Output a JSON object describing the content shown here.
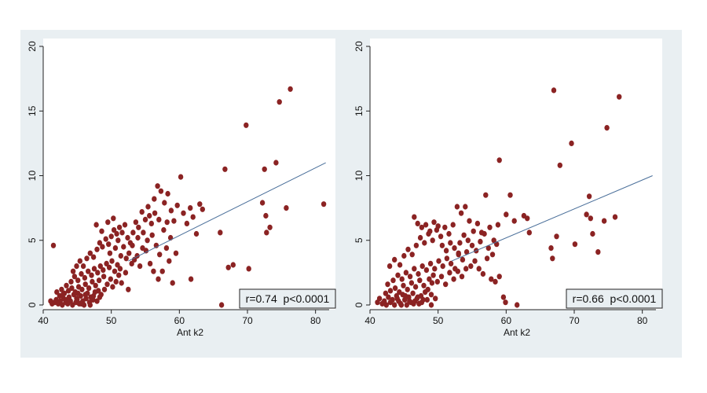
{
  "chart_data": [
    {
      "type": "scatter",
      "xlabel": "Ant k2",
      "ylabel": "",
      "xlim": [
        40,
        82
      ],
      "ylim": [
        0,
        20
      ],
      "xticks": [
        40,
        50,
        60,
        70,
        80
      ],
      "yticks": [
        0,
        5,
        10,
        15,
        20
      ],
      "grid": false,
      "marker_color": "#8b2323",
      "line_color": "#4a6f9a",
      "annotation": "r=0.74  p<0.0001",
      "fit_line": {
        "x": [
          52.5,
          81.5
        ],
        "y": [
          3.4,
          11.0
        ]
      },
      "points": [
        [
          41.1,
          0.3
        ],
        [
          41.3,
          0.1
        ],
        [
          41.7,
          0.2
        ],
        [
          41.9,
          0.4
        ],
        [
          42.2,
          0.1
        ],
        [
          42.5,
          0.3
        ],
        [
          42.8,
          0.0
        ],
        [
          43.0,
          0.5
        ],
        [
          43.3,
          0.2
        ],
        [
          43.6,
          0.1
        ],
        [
          43.8,
          0.6
        ],
        [
          44.0,
          0.3
        ],
        [
          44.3,
          0.0
        ],
        [
          44.5,
          0.8
        ],
        [
          44.8,
          0.2
        ],
        [
          45.0,
          0.4
        ],
        [
          45.3,
          0.1
        ],
        [
          45.5,
          0.7
        ],
        [
          45.8,
          0.3
        ],
        [
          46.0,
          0.0
        ],
        [
          46.3,
          0.5
        ],
        [
          46.5,
          0.9
        ],
        [
          46.8,
          0.2
        ],
        [
          47.0,
          0.6
        ],
        [
          47.3,
          0.4
        ],
        [
          47.6,
          1.0
        ],
        [
          42.4,
          0.7
        ],
        [
          43.1,
          0.9
        ],
        [
          43.7,
          1.1
        ],
        [
          44.2,
          1.3
        ],
        [
          44.7,
          1.0
        ],
        [
          45.2,
          1.4
        ],
        [
          45.7,
          1.2
        ],
        [
          46.2,
          1.6
        ],
        [
          46.7,
          1.3
        ],
        [
          47.2,
          1.8
        ],
        [
          47.7,
          1.5
        ],
        [
          48.1,
          1.1
        ],
        [
          48.5,
          0.8
        ],
        [
          49.0,
          1.2
        ],
        [
          42.0,
          1.0
        ],
        [
          42.7,
          1.2
        ],
        [
          43.4,
          1.5
        ],
        [
          44.1,
          1.8
        ],
        [
          44.6,
          2.2
        ],
        [
          45.1,
          1.9
        ],
        [
          45.6,
          2.4
        ],
        [
          46.1,
          2.1
        ],
        [
          46.6,
          2.6
        ],
        [
          47.1,
          2.3
        ],
        [
          47.5,
          2.8
        ],
        [
          48.0,
          2.5
        ],
        [
          48.4,
          3.0
        ],
        [
          48.8,
          2.7
        ],
        [
          49.3,
          3.2
        ],
        [
          49.7,
          2.9
        ],
        [
          50.1,
          3.4
        ],
        [
          50.5,
          2.6
        ],
        [
          50.9,
          3.1
        ],
        [
          51.3,
          2.8
        ],
        [
          41.5,
          4.6
        ],
        [
          44.4,
          2.6
        ],
        [
          44.9,
          3.0
        ],
        [
          45.4,
          3.4
        ],
        [
          45.9,
          3.0
        ],
        [
          46.4,
          3.6
        ],
        [
          46.9,
          4.0
        ],
        [
          47.4,
          3.7
        ],
        [
          47.9,
          4.3
        ],
        [
          48.3,
          4.8
        ],
        [
          48.7,
          4.5
        ],
        [
          49.2,
          5.1
        ],
        [
          49.6,
          4.7
        ],
        [
          50.0,
          5.3
        ],
        [
          50.4,
          5.8
        ],
        [
          50.8,
          5.5
        ],
        [
          51.2,
          6.0
        ],
        [
          51.6,
          5.6
        ],
        [
          52.0,
          6.2
        ],
        [
          52.4,
          5.2
        ],
        [
          52.8,
          4.8
        ],
        [
          53.2,
          5.6
        ],
        [
          53.6,
          6.4
        ],
        [
          54.0,
          6.0
        ],
        [
          54.5,
          7.2
        ],
        [
          55.0,
          6.6
        ],
        [
          55.4,
          7.6
        ],
        [
          55.9,
          6.3
        ],
        [
          56.3,
          8.2
        ],
        [
          56.8,
          9.2
        ],
        [
          57.3,
          8.8
        ],
        [
          57.8,
          7.9
        ],
        [
          58.3,
          8.6
        ],
        [
          58.8,
          7.3
        ],
        [
          59.2,
          6.5
        ],
        [
          59.7,
          7.7
        ],
        [
          60.2,
          9.9
        ],
        [
          60.6,
          7.1
        ],
        [
          61.1,
          6.3
        ],
        [
          61.6,
          7.5
        ],
        [
          62.0,
          6.8
        ],
        [
          62.5,
          5.5
        ],
        [
          63.0,
          7.8
        ],
        [
          63.4,
          7.4
        ],
        [
          47.8,
          6.2
        ],
        [
          48.6,
          5.7
        ],
        [
          49.5,
          6.4
        ],
        [
          50.3,
          6.7
        ],
        [
          51.0,
          5.0
        ],
        [
          51.8,
          4.5
        ],
        [
          52.6,
          4.0
        ],
        [
          53.4,
          3.5
        ],
        [
          54.2,
          3.0
        ],
        [
          55.1,
          4.2
        ],
        [
          55.7,
          3.2
        ],
        [
          56.2,
          2.6
        ],
        [
          56.9,
          2.0
        ],
        [
          57.5,
          2.6
        ],
        [
          58.1,
          4.4
        ],
        [
          58.5,
          3.4
        ],
        [
          59.0,
          1.7
        ],
        [
          59.5,
          4.0
        ],
        [
          61.7,
          2.0
        ],
        [
          66.0,
          5.6
        ],
        [
          66.7,
          10.5
        ],
        [
          67.2,
          2.9
        ],
        [
          67.9,
          3.1
        ],
        [
          69.8,
          13.9
        ],
        [
          70.2,
          2.8
        ],
        [
          72.2,
          7.9
        ],
        [
          72.5,
          10.5
        ],
        [
          72.7,
          6.9
        ],
        [
          72.8,
          5.6
        ],
        [
          73.3,
          6.0
        ],
        [
          74.2,
          11.0
        ],
        [
          74.7,
          15.7
        ],
        [
          75.7,
          7.5
        ],
        [
          76.3,
          16.7
        ],
        [
          81.2,
          7.8
        ],
        [
          66.2,
          0.0
        ],
        [
          48.2,
          1.9
        ],
        [
          48.9,
          2.2
        ],
        [
          49.4,
          1.6
        ],
        [
          49.9,
          2.0
        ],
        [
          50.2,
          1.4
        ],
        [
          50.7,
          1.8
        ],
        [
          51.1,
          2.3
        ],
        [
          51.5,
          1.7
        ],
        [
          52.1,
          2.5
        ],
        [
          52.5,
          1.2
        ],
        [
          43.5,
          0.4
        ],
        [
          44.9,
          0.5
        ],
        [
          45.6,
          0.1
        ],
        [
          46.2,
          0.8
        ],
        [
          46.9,
          0.0
        ],
        [
          47.4,
          0.7
        ],
        [
          47.9,
          0.3
        ],
        [
          48.3,
          0.6
        ],
        [
          42.9,
          0.8
        ],
        [
          45.1,
          0.9
        ],
        [
          53.0,
          3.2
        ],
        [
          53.8,
          3.8
        ],
        [
          54.6,
          4.4
        ],
        [
          55.3,
          5.0
        ],
        [
          56.0,
          5.4
        ],
        [
          56.6,
          4.6
        ],
        [
          57.1,
          3.9
        ],
        [
          57.7,
          5.8
        ],
        [
          58.2,
          6.4
        ],
        [
          58.7,
          5.2
        ],
        [
          49.8,
          4.0
        ],
        [
          50.6,
          4.4
        ],
        [
          51.4,
          3.8
        ],
        [
          52.2,
          3.6
        ],
        [
          53.1,
          4.6
        ],
        [
          53.9,
          5.2
        ],
        [
          54.7,
          5.6
        ],
        [
          55.6,
          6.9
        ],
        [
          56.4,
          7.1
        ],
        [
          57.0,
          6.6
        ]
      ]
    },
    {
      "type": "scatter",
      "xlabel": "Ant k2",
      "ylabel": "",
      "xlim": [
        40,
        82
      ],
      "ylim": [
        0,
        20
      ],
      "xticks": [
        40,
        50,
        60,
        70,
        80
      ],
      "yticks": [
        0,
        5,
        10,
        15,
        20
      ],
      "grid": false,
      "marker_color": "#8b2323",
      "line_color": "#4a6f9a",
      "annotation": "r=0.66  p<0.0001",
      "fit_line": {
        "x": [
          52.0,
          81.5
        ],
        "y": [
          3.4,
          10.0
        ]
      },
      "points": [
        [
          41.1,
          0.2
        ],
        [
          41.4,
          0.5
        ],
        [
          41.8,
          0.1
        ],
        [
          42.1,
          0.3
        ],
        [
          42.4,
          0.0
        ],
        [
          42.7,
          0.6
        ],
        [
          43.0,
          0.2
        ],
        [
          43.3,
          0.4
        ],
        [
          43.6,
          0.0
        ],
        [
          43.9,
          0.7
        ],
        [
          44.2,
          0.3
        ],
        [
          44.5,
          0.1
        ],
        [
          44.8,
          0.8
        ],
        [
          45.1,
          0.4
        ],
        [
          45.4,
          0.0
        ],
        [
          45.7,
          0.6
        ],
        [
          46.0,
          0.2
        ],
        [
          46.3,
          0.9
        ],
        [
          46.6,
          0.3
        ],
        [
          46.9,
          0.5
        ],
        [
          47.2,
          0.1
        ],
        [
          47.5,
          0.7
        ],
        [
          47.8,
          0.4
        ],
        [
          48.1,
          1.0
        ],
        [
          42.3,
          0.9
        ],
        [
          43.0,
          1.1
        ],
        [
          43.7,
          1.3
        ],
        [
          44.3,
          1.0
        ],
        [
          44.9,
          1.5
        ],
        [
          45.5,
          1.2
        ],
        [
          46.1,
          1.7
        ],
        [
          46.7,
          1.4
        ],
        [
          47.3,
          1.9
        ],
        [
          47.9,
          1.5
        ],
        [
          48.5,
          1.2
        ],
        [
          49.1,
          1.7
        ],
        [
          42.6,
          1.6
        ],
        [
          43.4,
          1.9
        ],
        [
          44.1,
          2.3
        ],
        [
          44.7,
          2.0
        ],
        [
          45.3,
          2.5
        ],
        [
          45.9,
          2.2
        ],
        [
          46.5,
          2.8
        ],
        [
          47.1,
          2.4
        ],
        [
          47.7,
          3.0
        ],
        [
          48.3,
          2.7
        ],
        [
          48.9,
          3.2
        ],
        [
          49.5,
          2.8
        ],
        [
          50.1,
          3.4
        ],
        [
          50.7,
          3.0
        ],
        [
          51.3,
          3.6
        ],
        [
          51.9,
          3.2
        ],
        [
          52.5,
          2.8
        ],
        [
          53.0,
          3.9
        ],
        [
          42.9,
          3.0
        ],
        [
          43.6,
          3.5
        ],
        [
          44.4,
          3.1
        ],
        [
          45.0,
          3.8
        ],
        [
          45.6,
          4.3
        ],
        [
          46.2,
          3.9
        ],
        [
          46.8,
          4.6
        ],
        [
          47.4,
          5.2
        ],
        [
          48.0,
          4.8
        ],
        [
          48.6,
          5.5
        ],
        [
          49.2,
          5.0
        ],
        [
          49.8,
          5.8
        ],
        [
          50.4,
          5.3
        ],
        [
          51.0,
          6.0
        ],
        [
          51.6,
          5.5
        ],
        [
          52.2,
          6.2
        ],
        [
          52.8,
          7.6
        ],
        [
          53.4,
          7.1
        ],
        [
          54.0,
          7.6
        ],
        [
          54.6,
          6.5
        ],
        [
          55.2,
          5.7
        ],
        [
          55.8,
          6.3
        ],
        [
          56.4,
          5.6
        ],
        [
          57.0,
          8.5
        ],
        [
          57.6,
          6.0
        ],
        [
          58.2,
          5.0
        ],
        [
          58.8,
          6.2
        ],
        [
          59.0,
          11.2
        ],
        [
          60.0,
          7.0
        ],
        [
          60.6,
          8.5
        ],
        [
          61.2,
          6.5
        ],
        [
          62.6,
          6.9
        ],
        [
          63.1,
          6.7
        ],
        [
          63.4,
          5.6
        ],
        [
          46.5,
          6.8
        ],
        [
          47.0,
          6.3
        ],
        [
          47.6,
          6.0
        ],
        [
          48.2,
          6.2
        ],
        [
          48.8,
          5.7
        ],
        [
          49.4,
          6.4
        ],
        [
          50.0,
          6.1
        ],
        [
          50.6,
          4.6
        ],
        [
          51.2,
          4.2
        ],
        [
          51.8,
          4.8
        ],
        [
          52.4,
          4.4
        ],
        [
          53.0,
          4.0
        ],
        [
          53.6,
          3.5
        ],
        [
          54.2,
          4.1
        ],
        [
          54.8,
          3.0
        ],
        [
          55.4,
          3.4
        ],
        [
          56.0,
          2.8
        ],
        [
          56.6,
          2.4
        ],
        [
          57.2,
          3.6
        ],
        [
          57.8,
          2.0
        ],
        [
          58.4,
          1.8
        ],
        [
          59.0,
          2.2
        ],
        [
          59.6,
          0.6
        ],
        [
          59.9,
          0.2
        ],
        [
          61.6,
          0.0
        ],
        [
          66.6,
          4.4
        ],
        [
          66.8,
          3.6
        ],
        [
          67.0,
          16.6
        ],
        [
          67.4,
          5.3
        ],
        [
          67.9,
          10.8
        ],
        [
          69.6,
          12.5
        ],
        [
          70.1,
          4.7
        ],
        [
          71.8,
          7.0
        ],
        [
          72.2,
          8.4
        ],
        [
          72.4,
          6.7
        ],
        [
          72.7,
          5.5
        ],
        [
          73.5,
          4.1
        ],
        [
          74.4,
          6.5
        ],
        [
          74.8,
          13.7
        ],
        [
          76.0,
          6.8
        ],
        [
          76.6,
          16.1
        ],
        [
          49.0,
          0.0
        ],
        [
          44.0,
          0.5
        ],
        [
          44.6,
          0.0
        ],
        [
          45.2,
          0.7
        ],
        [
          45.8,
          0.3
        ],
        [
          46.4,
          0.1
        ],
        [
          47.0,
          0.6
        ],
        [
          47.6,
          0.2
        ],
        [
          48.4,
          0.4
        ],
        [
          49.0,
          0.8
        ],
        [
          49.6,
          0.5
        ],
        [
          48.7,
          2.0
        ],
        [
          49.3,
          2.3
        ],
        [
          49.9,
          1.8
        ],
        [
          50.5,
          2.2
        ],
        [
          51.1,
          1.6
        ],
        [
          51.7,
          2.5
        ],
        [
          52.3,
          2.0
        ],
        [
          52.9,
          2.6
        ],
        [
          53.5,
          2.2
        ],
        [
          54.1,
          2.8
        ],
        [
          53.2,
          4.8
        ],
        [
          53.8,
          5.4
        ],
        [
          54.4,
          5.0
        ],
        [
          55.0,
          4.6
        ],
        [
          55.6,
          4.2
        ],
        [
          56.2,
          4.9
        ],
        [
          56.8,
          5.5
        ],
        [
          57.4,
          4.4
        ],
        [
          58.0,
          3.9
        ],
        [
          58.6,
          4.7
        ]
      ]
    }
  ]
}
